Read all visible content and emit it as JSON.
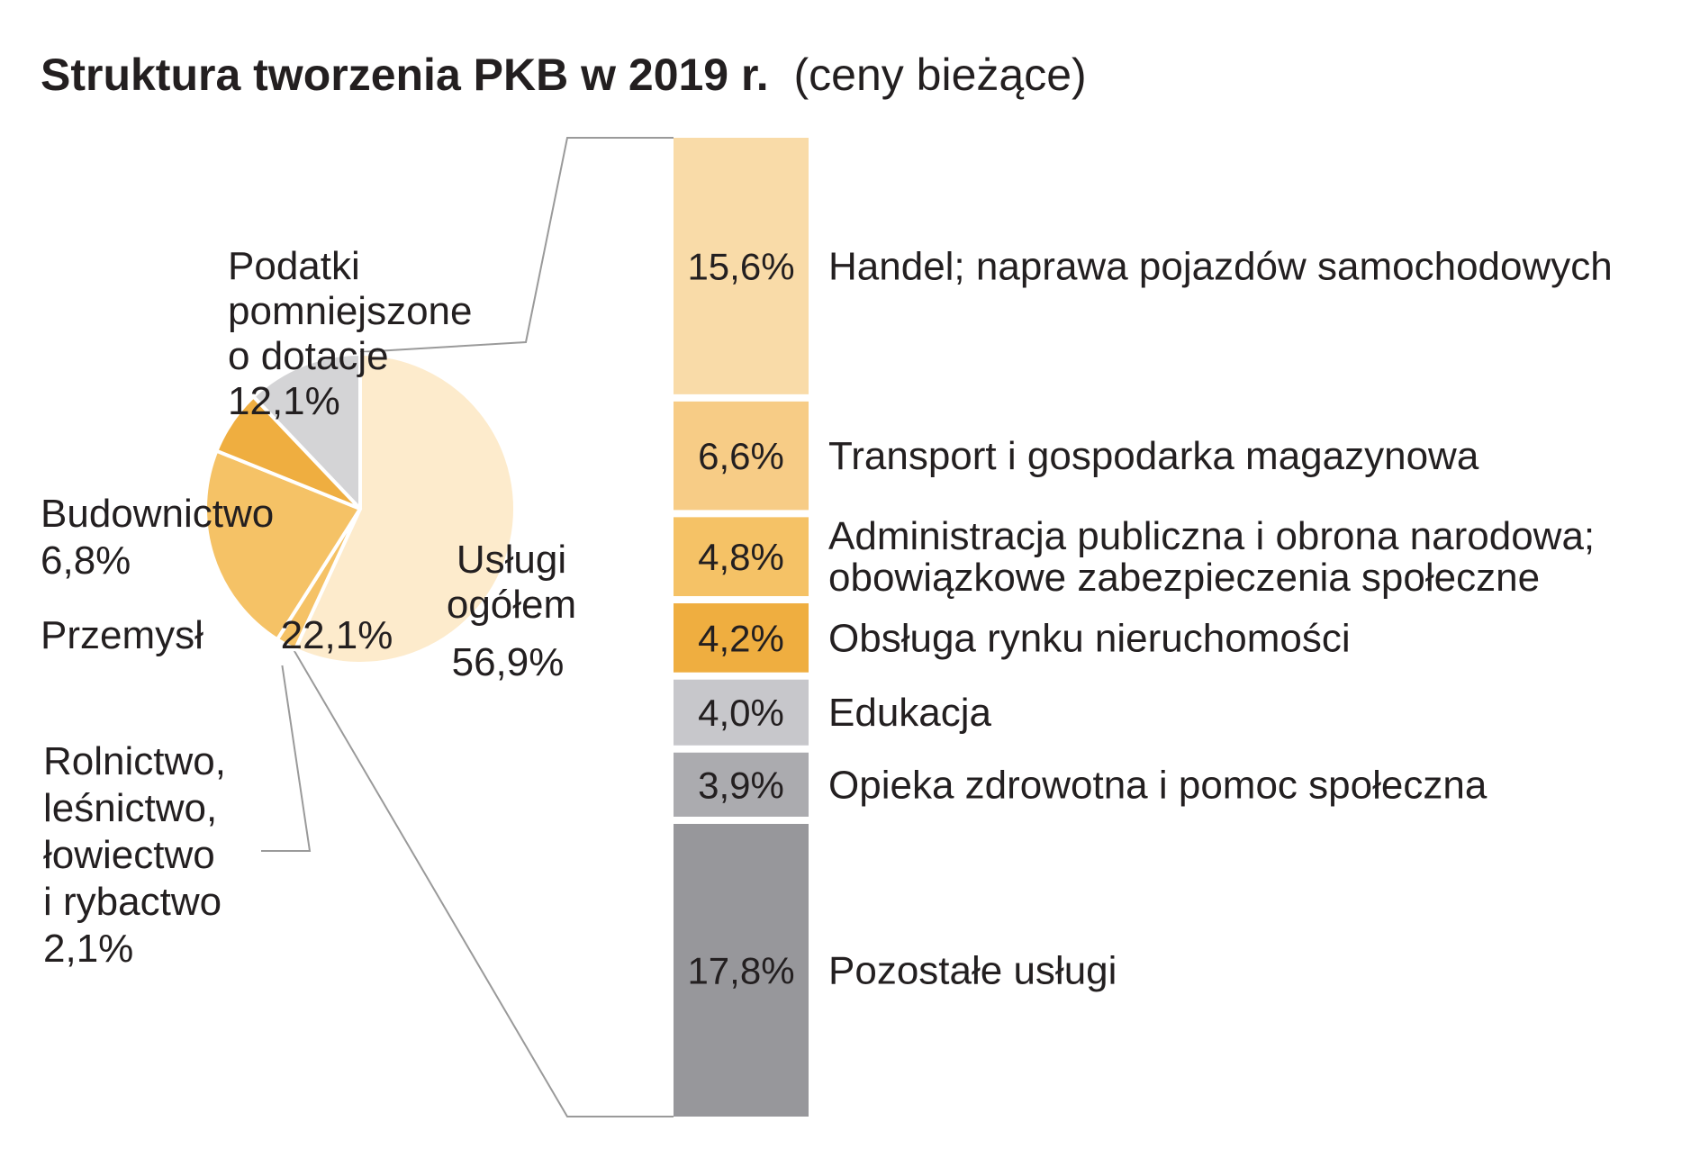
{
  "title": {
    "main": "Struktura tworzenia PKB w 2019 r.",
    "sub": "(ceny bieżące)"
  },
  "colors": {
    "uslugi": "#fdebcc",
    "przemysl": "#f5c266",
    "budownictwo": "#efae40",
    "podatki": "#d4d4d6",
    "rolnictwo": "#f5c266",
    "handel": "#f9dba8",
    "transport": "#f7cc86",
    "administracja": "#f5c266",
    "nieruchomosci": "#efae40",
    "edukacja": "#c7c7cb",
    "opieka": "#ababaf",
    "pozostale": "#97979b",
    "connector": "#9a9a9a",
    "text": "#231f20"
  },
  "chart_data": [
    {
      "type": "pie",
      "slices": [
        {
          "key": "uslugi",
          "name": "Usługi ogółem",
          "label_lines": [
            "Usługi",
            "ogółem"
          ],
          "value": 56.9,
          "value_label": "56,9%"
        },
        {
          "key": "rolnictwo",
          "name": "Rolnictwo, leśnictwo, łowiectwo i rybactwo",
          "label_lines": [
            "Rolnictwo,",
            "leśnictwo,",
            "łowiectwo",
            "i rybactwo"
          ],
          "value": 2.1,
          "value_label": "2,1%"
        },
        {
          "key": "przemysl",
          "name": "Przemysł",
          "label_lines": [
            "Przemysł"
          ],
          "value": 22.1,
          "value_label": "22,1%"
        },
        {
          "key": "budownictwo",
          "name": "Budownictwo",
          "label_lines": [
            "Budownictwo"
          ],
          "value": 6.8,
          "value_label": "6,8%"
        },
        {
          "key": "podatki",
          "name": "Podatki pomniejszone o dotacje",
          "label_lines": [
            "Podatki",
            "pomniejszone",
            "o dotacje"
          ],
          "value": 12.1,
          "value_label": "12,1%"
        }
      ]
    },
    {
      "type": "bar",
      "stacked": true,
      "orientation": "vertical",
      "segments": [
        {
          "key": "handel",
          "label_lines": [
            "Handel; naprawa pojazdów samochodowych"
          ],
          "value": 15.6,
          "value_label": "15,6%"
        },
        {
          "key": "transport",
          "label_lines": [
            "Transport i gospodarka magazynowa"
          ],
          "value": 6.6,
          "value_label": "6,6%"
        },
        {
          "key": "administracja",
          "label_lines": [
            "Administracja publiczna i obrona narodowa;",
            "obowiązkowe zabezpieczenia społeczne"
          ],
          "value": 4.8,
          "value_label": "4,8%"
        },
        {
          "key": "nieruchomosci",
          "label_lines": [
            "Obsługa rynku nieruchomości"
          ],
          "value": 4.2,
          "value_label": "4,2%"
        },
        {
          "key": "edukacja",
          "label_lines": [
            "Edukacja"
          ],
          "value": 4.0,
          "value_label": "4,0%"
        },
        {
          "key": "opieka",
          "label_lines": [
            "Opieka zdrowotna  i pomoc społeczna"
          ],
          "value": 3.9,
          "value_label": "3,9%"
        },
        {
          "key": "pozostale",
          "label_lines": [
            "Pozostałe usługi"
          ],
          "value": 17.8,
          "value_label": "17,8%"
        }
      ]
    }
  ]
}
